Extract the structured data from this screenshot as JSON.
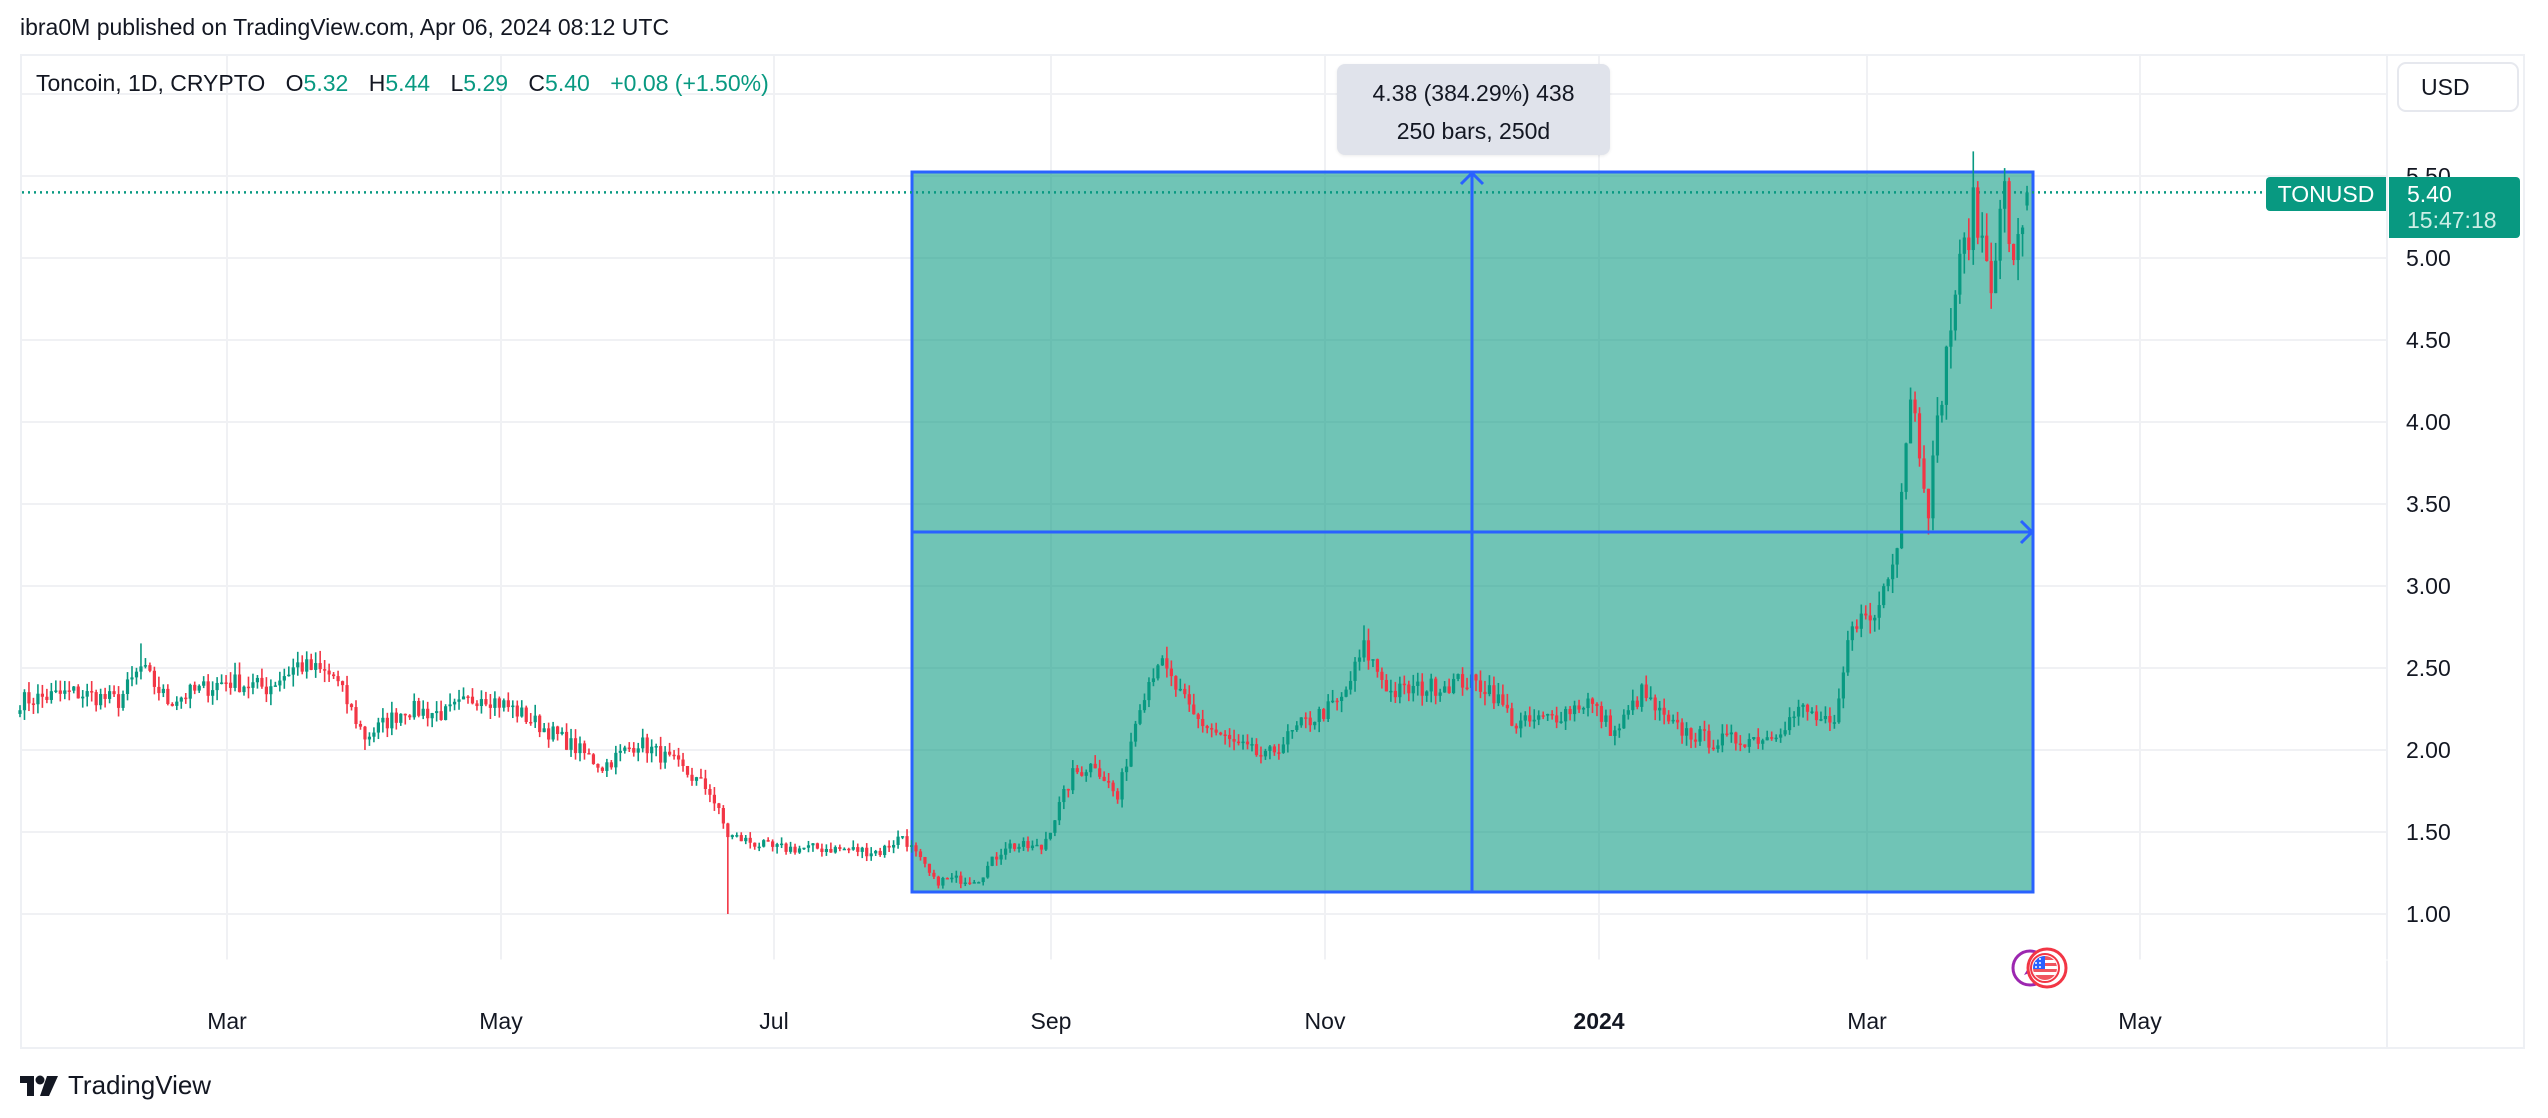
{
  "header": {
    "published": "ibra0M published on TradingView.com, Apr 06, 2024 08:12 UTC"
  },
  "legend": {
    "symbol": "Toncoin, 1D, CRYPTO",
    "open_label": "O",
    "open": "5.32",
    "high_label": "H",
    "high": "5.44",
    "low_label": "L",
    "low": "5.29",
    "close_label": "C",
    "close": "5.40",
    "change": "+0.08 (+1.50%)"
  },
  "price_scale": {
    "currency": "USD",
    "ticks": [
      "5.50",
      "5.00",
      "4.50",
      "4.00",
      "3.50",
      "3.00",
      "2.50",
      "2.00",
      "1.50",
      "1.00"
    ]
  },
  "time_scale": {
    "ticks": [
      {
        "label": "Mar",
        "bold": false
      },
      {
        "label": "May",
        "bold": false
      },
      {
        "label": "Jul",
        "bold": false
      },
      {
        "label": "Sep",
        "bold": false
      },
      {
        "label": "Nov",
        "bold": false
      },
      {
        "label": "2024",
        "bold": true
      },
      {
        "label": "Mar",
        "bold": false
      },
      {
        "label": "May",
        "bold": false
      }
    ]
  },
  "last_price": {
    "symbol": "TONUSD",
    "price": "5.40",
    "countdown": "15:47:18"
  },
  "measure_tool": {
    "line1": "4.38 (384.29%) 438",
    "line2": "250 bars, 250d"
  },
  "footer": {
    "brand": "TradingView"
  },
  "colors": {
    "up": "#089981",
    "down": "#f23645",
    "measure_fill": "#089981",
    "measure_border": "#2962ff",
    "grid": "#f0f1f4"
  },
  "chart_data": {
    "type": "candlestick",
    "title": "Toncoin, 1D, CRYPTO",
    "symbol": "TONUSD",
    "xlabel": "",
    "ylabel": "USD",
    "ylim": [
      0.7,
      6.0
    ],
    "x_ticks": [
      "Mar",
      "May",
      "Jul",
      "Sep",
      "Nov",
      "2024",
      "Mar",
      "May"
    ],
    "y_ticks": [
      1.0,
      1.5,
      2.0,
      2.5,
      3.0,
      3.5,
      4.0,
      4.5,
      5.0,
      5.5
    ],
    "grid": true,
    "start_date": "2023-01-14",
    "end_date": "2024-04-06",
    "last_bar": {
      "open": 5.32,
      "high": 5.44,
      "low": 5.29,
      "close": 5.4,
      "change": 0.08,
      "change_pct": 1.5
    },
    "close_keypoints": [
      {
        "day": 0,
        "date": "2023-01-14",
        "close": 2.3
      },
      {
        "day": 12,
        "date": "2023-01-26",
        "close": 2.35
      },
      {
        "day": 22,
        "date": "2023-02-05",
        "close": 2.3
      },
      {
        "day": 27,
        "date": "2023-02-10",
        "close": 2.5
      },
      {
        "day": 33,
        "date": "2023-02-16",
        "close": 2.3
      },
      {
        "day": 46,
        "date": "2023-03-01",
        "close": 2.42
      },
      {
        "day": 55,
        "date": "2023-03-10",
        "close": 2.38
      },
      {
        "day": 62,
        "date": "2023-03-17",
        "close": 2.52
      },
      {
        "day": 70,
        "date": "2023-03-25",
        "close": 2.45
      },
      {
        "day": 77,
        "date": "2023-04-01",
        "close": 2.08
      },
      {
        "day": 86,
        "date": "2023-04-10",
        "close": 2.25
      },
      {
        "day": 95,
        "date": "2023-04-19",
        "close": 2.22
      },
      {
        "day": 103,
        "date": "2023-04-27",
        "close": 2.34
      },
      {
        "day": 110,
        "date": "2023-05-04",
        "close": 2.25
      },
      {
        "day": 122,
        "date": "2023-05-16",
        "close": 2.05
      },
      {
        "day": 130,
        "date": "2023-05-24",
        "close": 1.9
      },
      {
        "day": 138,
        "date": "2023-06-01",
        "close": 2.05
      },
      {
        "day": 146,
        "date": "2023-06-09",
        "close": 1.92
      },
      {
        "day": 154,
        "date": "2023-06-17",
        "close": 1.75
      },
      {
        "day": 158,
        "date": "2023-06-21",
        "close": 1.48
      },
      {
        "day": 168,
        "date": "2023-07-01",
        "close": 1.4
      },
      {
        "day": 180,
        "date": "2023-07-13",
        "close": 1.4
      },
      {
        "day": 192,
        "date": "2023-07-25",
        "close": 1.38
      },
      {
        "day": 197,
        "date": "2023-07-30",
        "close": 1.48
      },
      {
        "day": 204,
        "date": "2023-08-06",
        "close": 1.2
      },
      {
        "day": 214,
        "date": "2023-08-16",
        "close": 1.22
      },
      {
        "day": 220,
        "date": "2023-08-22",
        "close": 1.42
      },
      {
        "day": 228,
        "date": "2023-08-30",
        "close": 1.4
      },
      {
        "day": 235,
        "date": "2023-09-06",
        "close": 1.85
      },
      {
        "day": 240,
        "date": "2023-09-11",
        "close": 1.92
      },
      {
        "day": 245,
        "date": "2023-09-16",
        "close": 1.7
      },
      {
        "day": 250,
        "date": "2023-09-21",
        "close": 2.3
      },
      {
        "day": 254,
        "date": "2023-09-25",
        "close": 2.55
      },
      {
        "day": 262,
        "date": "2023-10-03",
        "close": 2.2
      },
      {
        "day": 270,
        "date": "2023-10-11",
        "close": 2.05
      },
      {
        "day": 278,
        "date": "2023-10-19",
        "close": 1.95
      },
      {
        "day": 286,
        "date": "2023-10-27",
        "close": 2.15
      },
      {
        "day": 295,
        "date": "2023-11-05",
        "close": 2.3
      },
      {
        "day": 300,
        "date": "2023-11-10",
        "close": 2.62
      },
      {
        "day": 306,
        "date": "2023-11-16",
        "close": 2.35
      },
      {
        "day": 314,
        "date": "2023-11-24",
        "close": 2.38
      },
      {
        "day": 322,
        "date": "2023-12-02",
        "close": 2.42
      },
      {
        "day": 328,
        "date": "2023-12-08",
        "close": 2.38
      },
      {
        "day": 334,
        "date": "2023-12-14",
        "close": 2.15
      },
      {
        "day": 342,
        "date": "2023-12-22",
        "close": 2.2
      },
      {
        "day": 350,
        "date": "2023-12-30",
        "close": 2.3
      },
      {
        "day": 356,
        "date": "2024-01-05",
        "close": 2.1
      },
      {
        "day": 362,
        "date": "2024-01-11",
        "close": 2.35
      },
      {
        "day": 368,
        "date": "2024-01-17",
        "close": 2.15
      },
      {
        "day": 378,
        "date": "2024-01-27",
        "close": 2.05
      },
      {
        "day": 390,
        "date": "2024-02-08",
        "close": 2.08
      },
      {
        "day": 398,
        "date": "2024-02-16",
        "close": 2.25
      },
      {
        "day": 405,
        "date": "2024-02-23",
        "close": 2.12
      },
      {
        "day": 409,
        "date": "2024-02-27",
        "close": 2.8
      },
      {
        "day": 414,
        "date": "2024-03-03",
        "close": 2.8
      },
      {
        "day": 419,
        "date": "2024-03-08",
        "close": 3.3
      },
      {
        "day": 422,
        "date": "2024-03-11",
        "close": 4.2
      },
      {
        "day": 426,
        "date": "2024-03-15",
        "close": 3.5
      },
      {
        "day": 429,
        "date": "2024-03-18",
        "close": 4.2
      },
      {
        "day": 432,
        "date": "2024-03-21",
        "close": 4.8
      },
      {
        "day": 436,
        "date": "2024-03-25",
        "close": 5.3
      },
      {
        "day": 440,
        "date": "2024-03-29",
        "close": 4.9
      },
      {
        "day": 443,
        "date": "2024-04-01",
        "close": 5.4
      },
      {
        "day": 445,
        "date": "2024-04-03",
        "close": 4.9
      },
      {
        "day": 448,
        "date": "2024-04-06",
        "close": 5.4
      }
    ],
    "notable_wicks": [
      {
        "date": "2023-02-10",
        "high": 2.65
      },
      {
        "date": "2023-04-01",
        "low": 2.0
      },
      {
        "date": "2023-06-21",
        "low": 1.0
      },
      {
        "date": "2023-11-10",
        "high": 2.76
      },
      {
        "date": "2024-03-25",
        "high": 5.65
      }
    ],
    "measure": {
      "from_date": "2023-07-31",
      "to_date": "2024-04-06",
      "from_price": 1.14,
      "to_price": 5.52,
      "change": 4.38,
      "change_pct": 384.29,
      "ticks": 438,
      "bars": 250,
      "days": 250
    }
  }
}
